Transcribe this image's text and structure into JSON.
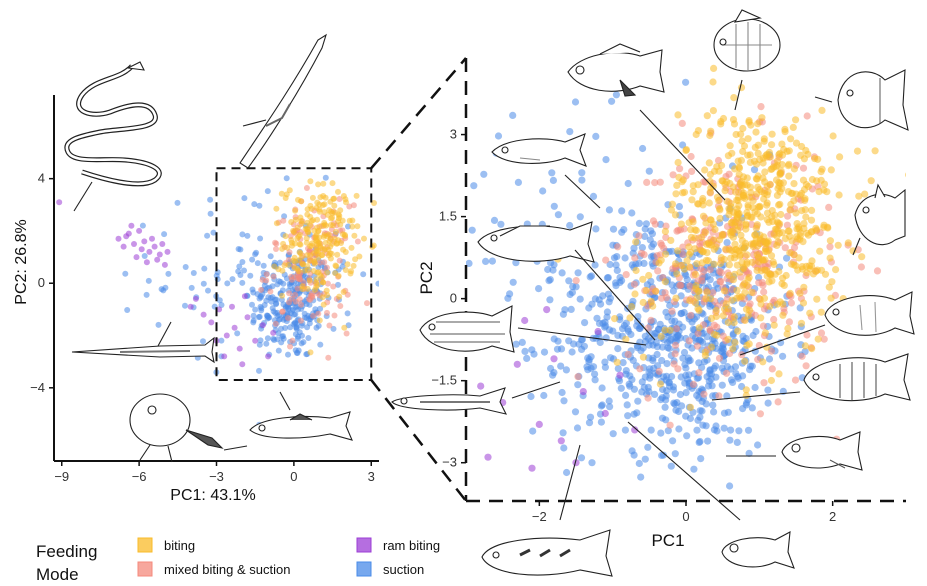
{
  "chart_data": [
    {
      "type": "scatter",
      "panel": "overview",
      "xlabel": "PC1: 43.1%",
      "ylabel": "PC2: 26.8%",
      "xlim": [
        -9.3,
        3.3
      ],
      "ylim": [
        -6.8,
        7.2
      ],
      "x_ticks": [
        -9,
        -6,
        -3,
        0,
        3
      ],
      "y_ticks": [
        -4,
        0,
        4
      ],
      "x_tick_labels": [
        "−9",
        "−6",
        "−3",
        "0",
        "3"
      ],
      "y_tick_labels": [
        "−4",
        "0",
        "4"
      ],
      "zoom_box": {
        "x": [
          -3,
          3
        ],
        "y": [
          -3.7,
          4.4
        ]
      },
      "series": [
        {
          "name": "biting",
          "color": "#f9bb29",
          "clusters": [
            {
              "cx": 1.0,
              "cy": 1.6,
              "sx": 0.7,
              "sy": 1.1,
              "n": 220
            }
          ]
        },
        {
          "name": "mixed biting & suction",
          "color": "#f48a7c",
          "clusters": [
            {
              "cx": 0.6,
              "cy": 0.6,
              "sx": 0.8,
              "sy": 1.2,
              "n": 140
            }
          ]
        },
        {
          "name": "ram biting",
          "color": "#9c3ed6",
          "points": [
            [
              -9.1,
              3.1
            ],
            [
              -6.8,
              1.7
            ],
            [
              -6.4,
              1.9
            ],
            [
              -6.2,
              1.5
            ],
            [
              -6.0,
              2.0
            ],
            [
              -5.8,
              1.6
            ],
            [
              -5.6,
              1.2
            ],
            [
              -5.4,
              1.4
            ],
            [
              -5.2,
              1.1
            ],
            [
              -6.6,
              1.4
            ],
            [
              -6.1,
              1.0
            ],
            [
              -5.9,
              1.3
            ],
            [
              -5.5,
              1.7
            ],
            [
              -5.3,
              0.9
            ],
            [
              -6.3,
              2.2
            ],
            [
              -5.1,
              1.5
            ],
            [
              -4.9,
              1.2
            ],
            [
              -5.7,
              0.8
            ],
            [
              -6.5,
              1.8
            ],
            [
              -5.0,
              0.7
            ],
            [
              -4.0,
              -0.9
            ],
            [
              -3.8,
              -0.6
            ],
            [
              -3.5,
              -1.2
            ],
            [
              -3.2,
              -1.5
            ],
            [
              -2.9,
              -1.0
            ],
            [
              -2.6,
              -2.0
            ],
            [
              -2.3,
              -1.7
            ],
            [
              -2.1,
              -2.5
            ],
            [
              -1.8,
              -1.3
            ],
            [
              -1.5,
              -2.2
            ],
            [
              -1.2,
              -1.6
            ],
            [
              -2.7,
              -2.8
            ],
            [
              -3.0,
              -2.2
            ],
            [
              -2.4,
              -0.9
            ],
            [
              -1.9,
              -0.5
            ],
            [
              -1.0,
              -2.8
            ],
            [
              -0.8,
              -1.9
            ],
            [
              -2.0,
              -3.1
            ]
          ]
        },
        {
          "name": "suction",
          "color": "#4a8be8",
          "clusters": [
            {
              "cx": -0.1,
              "cy": -0.8,
              "sx": 0.8,
              "sy": 1.1,
              "n": 230
            },
            {
              "cx": -1.5,
              "cy": 0.3,
              "sx": 2.0,
              "sy": 1.6,
              "n": 110
            }
          ]
        }
      ]
    },
    {
      "type": "scatter",
      "panel": "zoom",
      "xlabel": "PC1",
      "ylabel": "PC2",
      "xlim": [
        -3.0,
        3.0
      ],
      "ylim": [
        -3.7,
        4.4
      ],
      "x_ticks": [
        -2,
        0,
        2
      ],
      "y_ticks": [
        3,
        1.5,
        0,
        -1.5,
        -3
      ],
      "x_tick_labels": [
        "−2",
        "0",
        "2"
      ],
      "y_tick_labels": [
        "3",
        "1.5",
        "0",
        "−1.5",
        "−3"
      ],
      "series": [
        {
          "name": "biting",
          "color": "#f9bb29",
          "clusters": [
            {
              "cx": 1.0,
              "cy": 1.6,
              "sx": 0.55,
              "sy": 0.95,
              "n": 480
            },
            {
              "cx": 0.5,
              "cy": 0.3,
              "sx": 0.7,
              "sy": 0.9,
              "n": 120
            }
          ]
        },
        {
          "name": "mixed biting & suction",
          "color": "#f48a7c",
          "clusters": [
            {
              "cx": 0.6,
              "cy": 0.6,
              "sx": 0.7,
              "sy": 1.1,
              "n": 300
            }
          ]
        },
        {
          "name": "ram biting",
          "color": "#9c3ed6",
          "points": [
            [
              -2.6,
              -0.8
            ],
            [
              -2.3,
              -1.2
            ],
            [
              -2.2,
              -0.4
            ],
            [
              -2.5,
              -1.9
            ],
            [
              -2.0,
              -2.3
            ],
            [
              -1.8,
              -1.1
            ],
            [
              -1.7,
              -2.6
            ],
            [
              -1.4,
              -1.7
            ],
            [
              -1.2,
              -0.6
            ],
            [
              -1.1,
              -2.1
            ],
            [
              -0.9,
              -1.4
            ],
            [
              -2.7,
              -2.9
            ],
            [
              -2.1,
              -3.1
            ],
            [
              -1.5,
              -3.0
            ],
            [
              -0.7,
              -2.4
            ],
            [
              -2.8,
              -1.6
            ],
            [
              -1.9,
              -0.2
            ]
          ]
        },
        {
          "name": "suction",
          "color": "#4a8be8",
          "clusters": [
            {
              "cx": -0.1,
              "cy": -0.8,
              "sx": 0.75,
              "sy": 1.0,
              "n": 560
            },
            {
              "cx": -1.2,
              "cy": 0.6,
              "sx": 1.1,
              "sy": 1.3,
              "n": 160
            }
          ]
        }
      ]
    }
  ],
  "legend": {
    "title_line1": "Feeding",
    "title_line2": "Mode",
    "items": [
      {
        "label": "biting",
        "color": "#f9bb29"
      },
      {
        "label": "mixed biting & suction",
        "color": "#f48a7c"
      },
      {
        "label": "ram biting",
        "color": "#9c3ed6"
      },
      {
        "label": "suction",
        "color": "#4a8be8"
      }
    ]
  },
  "illustrations": [
    {
      "name": "eel-icon"
    },
    {
      "name": "pipefish-icon"
    },
    {
      "name": "needlefish-icon"
    },
    {
      "name": "frogfish-icon"
    },
    {
      "name": "cod-icon"
    },
    {
      "name": "damselfish-icon"
    },
    {
      "name": "angelfish-icon"
    },
    {
      "name": "surgeonfish-icon"
    },
    {
      "name": "jack-icon"
    },
    {
      "name": "triggerfish-icon"
    },
    {
      "name": "grouper-icon"
    },
    {
      "name": "wrasse-icon"
    },
    {
      "name": "cardinalfish-icon"
    },
    {
      "name": "cichlid-icon"
    },
    {
      "name": "barracuda-icon"
    },
    {
      "name": "goby-icon"
    },
    {
      "name": "pike-icon"
    },
    {
      "name": "blenny-icon"
    }
  ]
}
